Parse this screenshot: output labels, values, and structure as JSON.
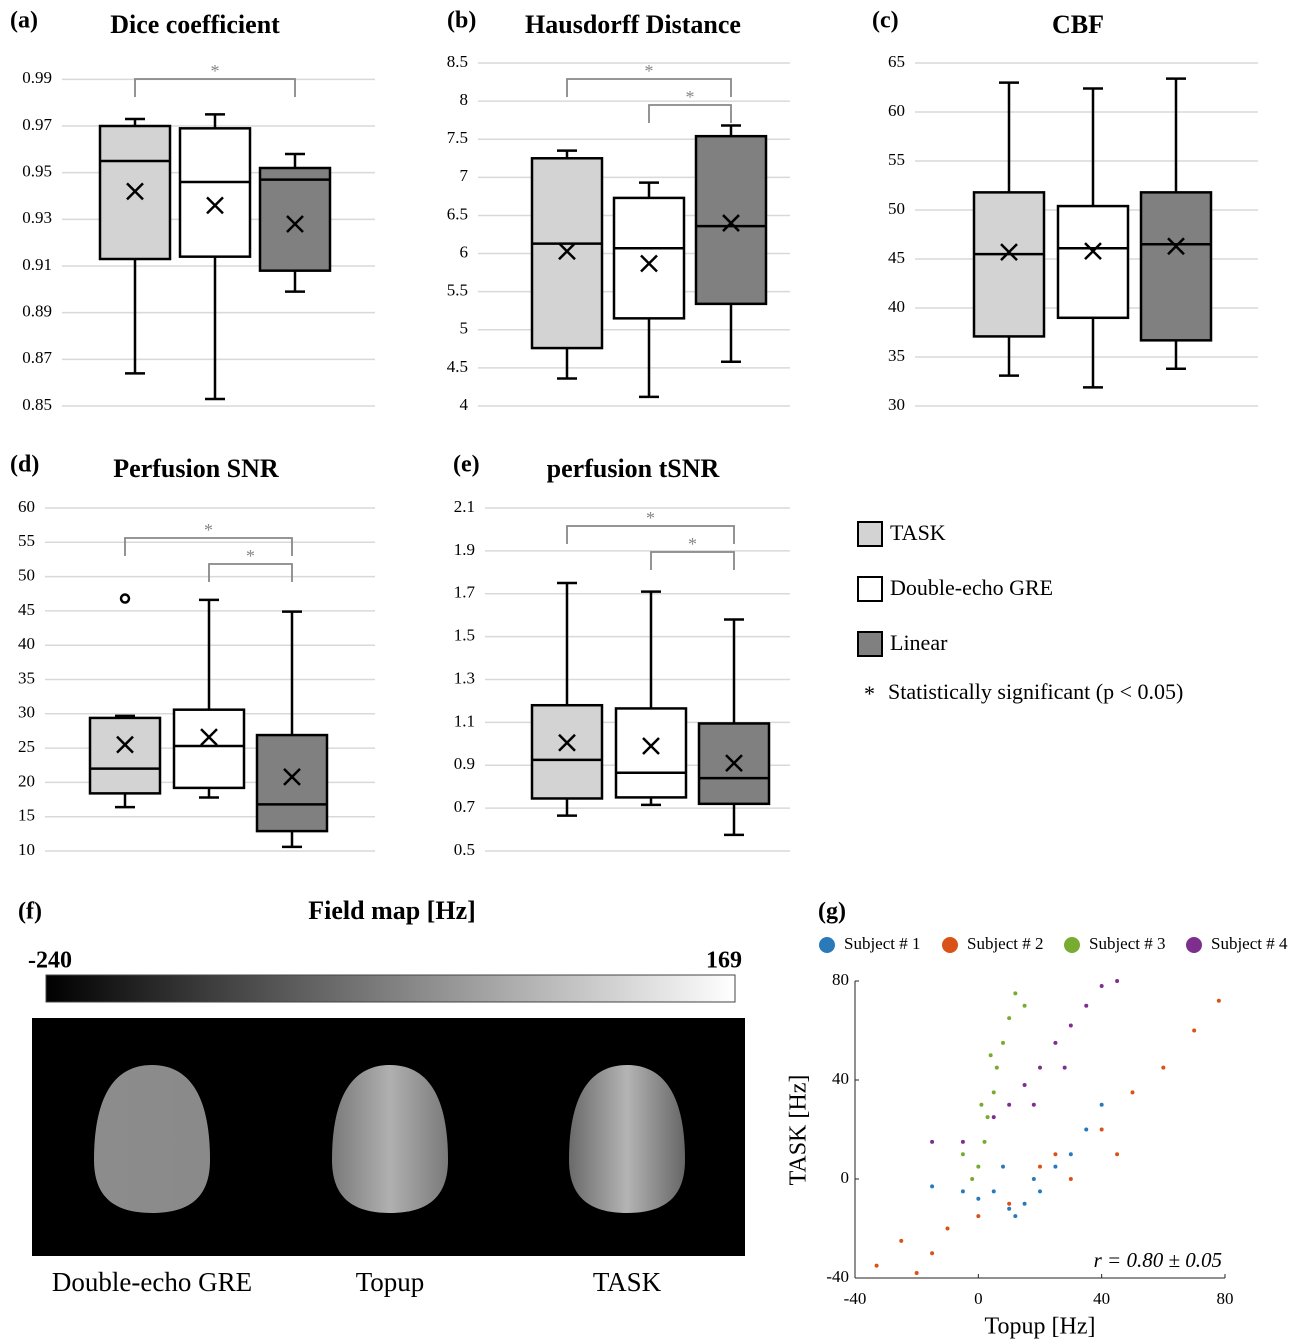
{
  "chart_data": [
    {
      "type": "box",
      "panel": "(a)",
      "title": "Dice coefficient",
      "ylim": [
        0.85,
        1.0
      ],
      "yticks": [
        0.85,
        0.87,
        0.89,
        0.91,
        0.93,
        0.95,
        0.97,
        0.99
      ],
      "grid": true,
      "series": [
        {
          "color": "#d3d3d3",
          "min": 0.864,
          "q1": 0.913,
          "median": 0.955,
          "q3": 0.97,
          "max": 0.973,
          "mean": 0.942,
          "outliers": []
        },
        {
          "color": "#ffffff",
          "min": 0.853,
          "q1": 0.914,
          "median": 0.946,
          "q3": 0.969,
          "max": 0.975,
          "mean": 0.936,
          "outliers": []
        },
        {
          "color": "#808080",
          "min": 0.899,
          "q1": 0.908,
          "median": 0.947,
          "q3": 0.952,
          "max": 0.958,
          "mean": 0.928,
          "outliers": []
        }
      ],
      "significant_pairs": [
        [
          0,
          2
        ]
      ]
    },
    {
      "type": "box",
      "panel": "(b)",
      "title": "Hausdorff Distance",
      "ylim": [
        4,
        8.5
      ],
      "yticks": [
        4,
        4.5,
        5,
        5.5,
        6,
        6.5,
        7,
        7.5,
        8,
        8.5
      ],
      "grid": true,
      "series": [
        {
          "color": "#d3d3d3",
          "min": 4.36,
          "q1": 4.76,
          "median": 6.13,
          "q3": 7.25,
          "max": 7.35,
          "mean": 6.03,
          "outliers": []
        },
        {
          "color": "#ffffff",
          "min": 4.12,
          "q1": 5.15,
          "median": 6.07,
          "q3": 6.73,
          "max": 6.93,
          "mean": 5.87,
          "outliers": []
        },
        {
          "color": "#808080",
          "min": 4.58,
          "q1": 5.34,
          "median": 6.36,
          "q3": 7.54,
          "max": 7.68,
          "mean": 6.4,
          "outliers": []
        }
      ],
      "significant_pairs": [
        [
          0,
          2
        ],
        [
          1,
          2
        ]
      ]
    },
    {
      "type": "box",
      "panel": "(c)",
      "title": "CBF",
      "ylim": [
        30,
        65
      ],
      "yticks": [
        30,
        35,
        40,
        45,
        50,
        55,
        60,
        65
      ],
      "grid": true,
      "series": [
        {
          "color": "#d3d3d3",
          "min": 33.1,
          "q1": 37.1,
          "median": 45.5,
          "q3": 51.8,
          "max": 63.0,
          "mean": 45.7,
          "outliers": []
        },
        {
          "color": "#ffffff",
          "min": 31.9,
          "q1": 39.0,
          "median": 46.1,
          "q3": 50.4,
          "max": 62.4,
          "mean": 45.8,
          "outliers": []
        },
        {
          "color": "#808080",
          "min": 33.8,
          "q1": 36.7,
          "median": 46.5,
          "q3": 51.8,
          "max": 63.4,
          "mean": 46.3,
          "outliers": []
        }
      ],
      "significant_pairs": []
    },
    {
      "type": "box",
      "panel": "(d)",
      "title": "Perfusion SNR",
      "ylim": [
        10,
        60
      ],
      "yticks": [
        10,
        15,
        20,
        25,
        30,
        35,
        40,
        45,
        50,
        55,
        60
      ],
      "grid": true,
      "series": [
        {
          "color": "#d3d3d3",
          "min": 16.4,
          "q1": 18.4,
          "median": 22.0,
          "q3": 29.4,
          "max": 29.7,
          "mean": 25.5,
          "outliers": [
            46.8
          ]
        },
        {
          "color": "#ffffff",
          "min": 17.8,
          "q1": 19.2,
          "median": 25.3,
          "q3": 30.6,
          "max": 46.6,
          "mean": 26.6,
          "outliers": []
        },
        {
          "color": "#808080",
          "min": 10.6,
          "q1": 12.9,
          "median": 16.8,
          "q3": 26.9,
          "max": 44.9,
          "mean": 20.8,
          "outliers": []
        }
      ],
      "significant_pairs": [
        [
          0,
          2
        ],
        [
          1,
          2
        ]
      ]
    },
    {
      "type": "box",
      "panel": "(e)",
      "title": "perfusion tSNR",
      "ylim": [
        0.5,
        2.1
      ],
      "yticks": [
        0.5,
        0.7,
        0.9,
        1.1,
        1.3,
        1.5,
        1.7,
        1.9,
        2.1
      ],
      "grid": true,
      "series": [
        {
          "color": "#d3d3d3",
          "min": 0.665,
          "q1": 0.745,
          "median": 0.925,
          "q3": 1.18,
          "max": 1.75,
          "mean": 1.005,
          "outliers": []
        },
        {
          "color": "#ffffff",
          "min": 0.715,
          "q1": 0.75,
          "median": 0.865,
          "q3": 1.165,
          "max": 1.71,
          "mean": 0.99,
          "outliers": []
        },
        {
          "color": "#808080",
          "min": 0.575,
          "q1": 0.72,
          "median": 0.84,
          "q3": 1.095,
          "max": 1.58,
          "mean": 0.91,
          "outliers": []
        }
      ],
      "significant_pairs": [
        [
          0,
          2
        ],
        [
          1,
          2
        ]
      ]
    },
    {
      "type": "fieldmap",
      "panel": "(f)",
      "title": "Field map [Hz]",
      "clim": [
        -240,
        169
      ],
      "images": [
        "Double-echo GRE",
        "Topup",
        "TASK"
      ]
    },
    {
      "type": "scatter",
      "panel": "(g)",
      "xlabel": "Topup [Hz]",
      "ylabel": "TASK [Hz]",
      "xlim": [
        -40,
        80
      ],
      "ylim": [
        -40,
        80
      ],
      "xticks": [
        -40,
        0,
        40,
        80
      ],
      "yticks": [
        -40,
        0,
        40,
        80
      ],
      "annotation": "r = 0.80 ± 0.05",
      "series": [
        {
          "name": "Subject # 1",
          "color": "#2a7ab9",
          "x": [
            -15,
            -5,
            0,
            5,
            10,
            15,
            20,
            25,
            30,
            35,
            40,
            8,
            18,
            12
          ],
          "y": [
            -3,
            -5,
            -8,
            -5,
            -12,
            -10,
            -5,
            5,
            10,
            20,
            30,
            5,
            0,
            -15
          ]
        },
        {
          "name": "Subject # 2",
          "color": "#d95319",
          "x": [
            -33,
            -25,
            -20,
            -10,
            0,
            10,
            20,
            25,
            30,
            40,
            50,
            60,
            70,
            78,
            -15,
            45
          ],
          "y": [
            -35,
            -25,
            -38,
            -20,
            -15,
            -10,
            5,
            10,
            0,
            20,
            35,
            45,
            60,
            72,
            -30,
            10
          ]
        },
        {
          "name": "Subject # 3",
          "color": "#77ac30",
          "x": [
            -2,
            0,
            2,
            3,
            5,
            6,
            8,
            10,
            12,
            4,
            1,
            15,
            -5
          ],
          "y": [
            0,
            5,
            15,
            25,
            35,
            45,
            55,
            65,
            75,
            50,
            30,
            70,
            10
          ]
        },
        {
          "name": "Subject # 4",
          "color": "#7e2f8e",
          "x": [
            -15,
            -5,
            5,
            10,
            15,
            20,
            25,
            30,
            35,
            40,
            45,
            28,
            18
          ],
          "y": [
            15,
            15,
            25,
            30,
            38,
            45,
            55,
            62,
            70,
            78,
            80,
            45,
            30
          ]
        }
      ]
    }
  ],
  "legend": {
    "entries": [
      {
        "name": "TASK",
        "color": "#d3d3d3"
      },
      {
        "name": "Double-echo GRE",
        "color": "#ffffff"
      },
      {
        "name": "Linear",
        "color": "#808080"
      }
    ],
    "significance_symbol": "*",
    "significance_label": "Statistically significant (p < 0.05)"
  }
}
